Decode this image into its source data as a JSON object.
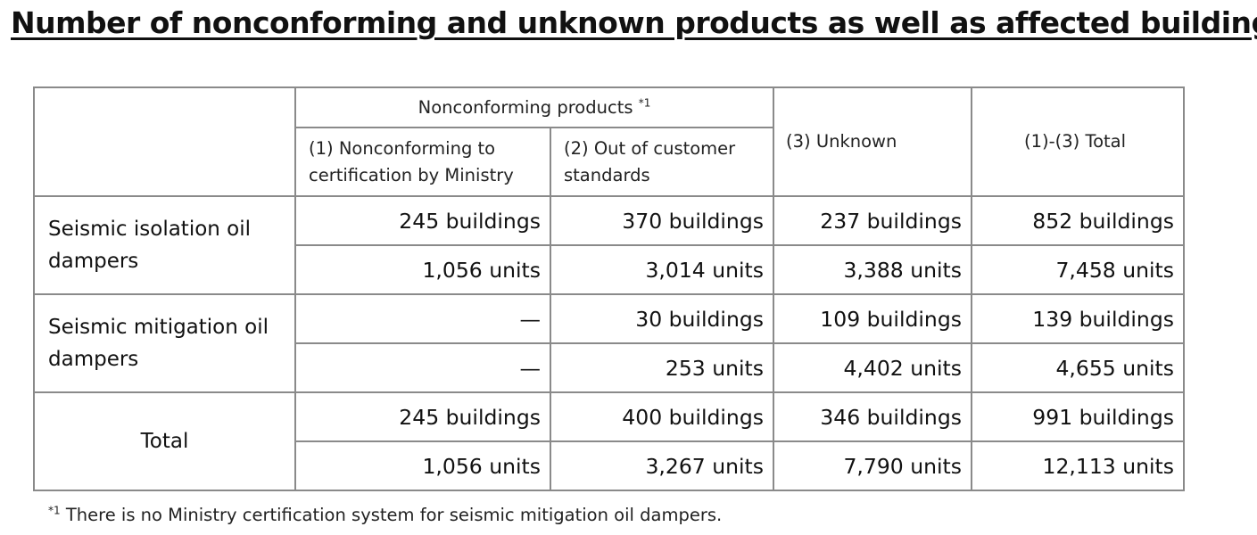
{
  "title": "Number of nonconforming and unknown products as well as affected buildings",
  "table": {
    "group_header": "Nonconforming products",
    "group_header_note": "*1",
    "col_1": "(1) Nonconforming to certification by Ministry",
    "col_2": "(2) Out of customer standards",
    "col_3": "(3) Unknown",
    "col_4": "(1)-(3) Total",
    "rows": [
      {
        "label": "Seismic isolation oil dampers",
        "buildings": [
          "245 buildings",
          "370 buildings",
          "237 buildings",
          "852 buildings"
        ],
        "units": [
          "1,056 units",
          "3,014 units",
          "3,388 units",
          "7,458 units"
        ]
      },
      {
        "label": "Seismic mitigation oil dampers",
        "buildings": [
          "—",
          "30 buildings",
          "109 buildings",
          "139 buildings"
        ],
        "units": [
          "—",
          "253 units",
          "4,402 units",
          "4,655 units"
        ]
      },
      {
        "label": "Total",
        "buildings": [
          "245 buildings",
          "400 buildings",
          "346 buildings",
          "991 buildings"
        ],
        "units": [
          "1,056 units",
          "3,267 units",
          "7,790 units",
          "12,113 units"
        ]
      }
    ]
  },
  "footnote": {
    "mark": "*1",
    "text": "There is no Ministry certification system for seismic mitigation oil dampers."
  }
}
